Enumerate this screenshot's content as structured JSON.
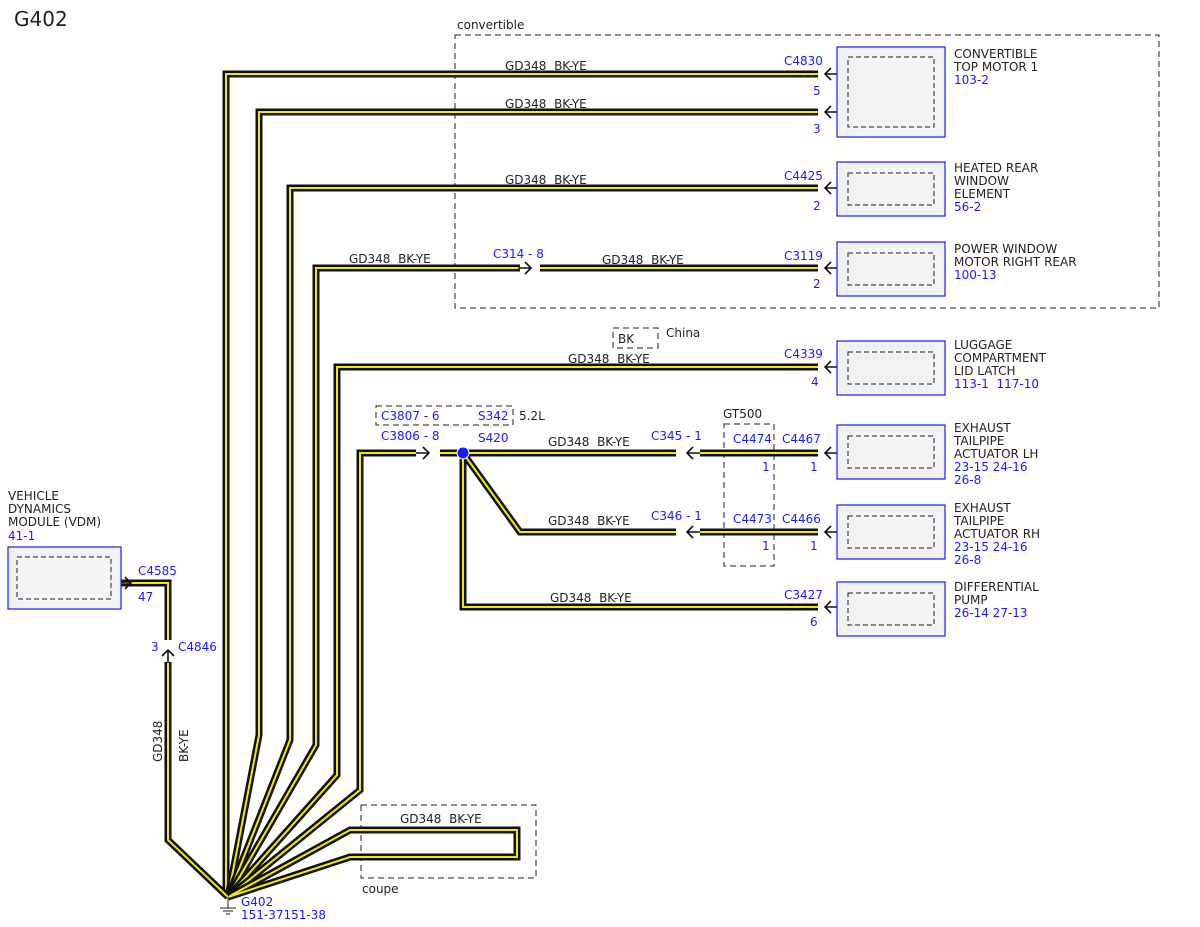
{
  "title": "G402",
  "wire_label": "GD348  BK-YE",
  "wire_circuit": "GD348",
  "wire_color": "BK-YE",
  "colors": {
    "wire_outer": "#111111",
    "wire_inner": "#f2ea00",
    "connector_text": "#1a1aff"
  },
  "regions": {
    "convertible": "convertible",
    "coupe": "coupe",
    "china": "China",
    "china_color": "BK",
    "engine": "5.2L",
    "gt500": "GT500"
  },
  "modules": [
    {
      "name": "CONVERTIBLE\nTOP MOTOR 1",
      "l1": "CONVERTIBLE",
      "l2": "TOP MOTOR 1",
      "l3": "",
      "ref": "103-2"
    },
    {
      "l1": "HEATED REAR",
      "l2": "WINDOW",
      "l3": "ELEMENT",
      "ref": "56-2"
    },
    {
      "l1": "POWER WINDOW",
      "l2": "MOTOR RIGHT REAR",
      "l3": "",
      "ref": "100-13"
    },
    {
      "l1": "LUGGAGE",
      "l2": "COMPARTMENT",
      "l3": "LID LATCH",
      "ref": "113-1  117-10"
    },
    {
      "l1": "EXHAUST",
      "l2": "TAILPIPE",
      "l3": "ACTUATOR LH",
      "ref": "23-15 24-16",
      "ref2": "26-8"
    },
    {
      "l1": "EXHAUST",
      "l2": "TAILPIPE",
      "l3": "ACTUATOR RH",
      "ref": "23-15 24-16",
      "ref2": "26-8"
    },
    {
      "l1": "DIFFERENTIAL",
      "l2": "PUMP",
      "l3": "",
      "ref": "26-14 27-13"
    },
    {
      "l1": "VEHICLE",
      "l2": "DYNAMICS",
      "l3": "MODULE (VDM)",
      "ref": "41-1"
    }
  ],
  "connectors": {
    "c4830": "C4830",
    "c4830_p5": "5",
    "c4830_p3": "3",
    "c4425": "C4425",
    "c4425_p": "2",
    "c3119": "C3119",
    "c3119_p": "2",
    "c314": "C314 - 8",
    "c4339": "C4339",
    "c4339_p": "4",
    "c3807": "C3807 - 6",
    "s342": "S342",
    "c3806": "C3806 - 8",
    "s420": "S420",
    "c345": "C345 - 1",
    "c4474": "C4474",
    "c4474_p": "1",
    "c4467": "C4467",
    "c4467_p": "1",
    "c346": "C346 - 1",
    "c4473": "C4473",
    "c4473_p": "1",
    "c4466": "C4466",
    "c4466_p": "1",
    "c3427": "C3427",
    "c3427_p": "6",
    "c4585": "C4585",
    "c4585_p": "47",
    "c4846": "C4846",
    "c4846_p": "3"
  },
  "ground": {
    "name": "G402",
    "ref": "151-37151-38"
  }
}
